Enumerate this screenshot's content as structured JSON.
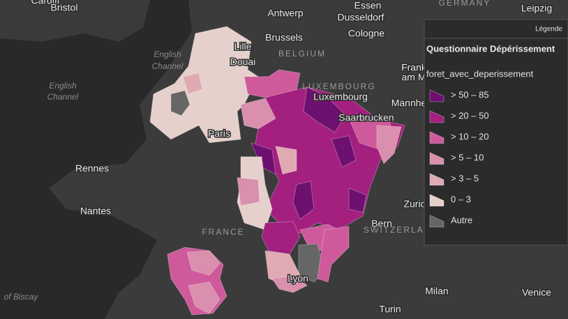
{
  "map": {
    "places": [
      "Cardiff",
      "Bristol",
      "Antwerp",
      "Essen",
      "Dusseldorf",
      "Leipzig",
      "Brussels",
      "Cologne",
      "Lille",
      "Douai",
      "Luxembourg",
      "Frank",
      "am M",
      "Mannhe",
      "Saarbrucken",
      "Paris",
      "Rennes",
      "Nantes",
      "Zuric",
      "Bern",
      "Lyon",
      "Milan",
      "Venice",
      "Turin"
    ],
    "regions": [
      "GERMANY",
      "BELGIUM",
      "LUXEMBOURG",
      "FRANCE",
      "SWITZERLAND"
    ],
    "seas": [
      "English",
      "Channel",
      "of Biscay"
    ]
  },
  "legend": {
    "header": "Légende",
    "title": "Questionnaire Dépérissement",
    "field": "foret_avec_deperissement",
    "classes": [
      {
        "label": "> 50 – 85",
        "color": "#6e1070"
      },
      {
        "label": "> 20 – 50",
        "color": "#a3207f"
      },
      {
        "label": "> 10 – 20",
        "color": "#cf5a9b"
      },
      {
        "label": "> 5 – 10",
        "color": "#d98fad"
      },
      {
        "label": "> 3 – 5",
        "color": "#e0aab3"
      },
      {
        "label": "0 – 3",
        "color": "#e5d0cc"
      },
      {
        "label": "Autre",
        "color": "#666666"
      }
    ]
  }
}
